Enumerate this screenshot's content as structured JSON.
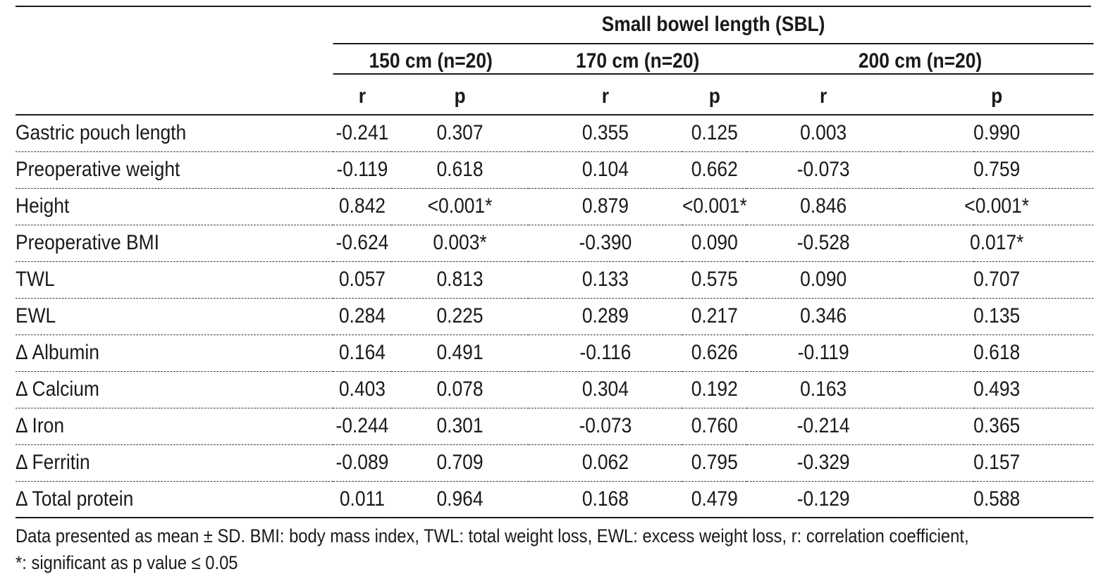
{
  "header": {
    "group_title": "Small bowel length (SBL)",
    "groups": [
      "150 cm (n=20)",
      "170 cm (n=20)",
      "200 cm (n=20)"
    ],
    "r_label": "r",
    "p_label": "p"
  },
  "rows": [
    {
      "label": "Gastric pouch length",
      "v": [
        "-0.241",
        "0.307",
        "0.355",
        "0.125",
        "0.003",
        "0.990"
      ]
    },
    {
      "label": "Preoperative weight",
      "v": [
        "-0.119",
        "0.618",
        "0.104",
        "0.662",
        "-0.073",
        "0.759"
      ]
    },
    {
      "label": "Height",
      "v": [
        "0.842",
        "<0.001*",
        "0.879",
        "<0.001*",
        "0.846",
        "<0.001*"
      ]
    },
    {
      "label": "Preoperative BMI",
      "v": [
        "-0.624",
        "0.003*",
        "-0.390",
        "0.090",
        "-0.528",
        "0.017*"
      ]
    },
    {
      "label": "TWL",
      "v": [
        "0.057",
        "0.813",
        "0.133",
        "0.575",
        "0.090",
        "0.707"
      ]
    },
    {
      "label": "EWL",
      "v": [
        "0.284",
        "0.225",
        "0.289",
        "0.217",
        "0.346",
        "0.135"
      ]
    },
    {
      "label": "Δ Albumin",
      "v": [
        "0.164",
        "0.491",
        "-0.116",
        "0.626",
        "-0.119",
        "0.618"
      ]
    },
    {
      "label": "Δ Calcium",
      "v": [
        "0.403",
        "0.078",
        "0.304",
        "0.192",
        "0.163",
        "0.493"
      ]
    },
    {
      "label": "Δ Iron",
      "v": [
        "-0.244",
        "0.301",
        "-0.073",
        "0.760",
        "-0.214",
        "0.365"
      ]
    },
    {
      "label": "Δ Ferritin",
      "v": [
        "-0.089",
        "0.709",
        "0.062",
        "0.795",
        "-0.329",
        "0.157"
      ]
    },
    {
      "label": "Δ Total protein",
      "v": [
        "0.011",
        "0.964",
        "0.168",
        "0.479",
        "-0.129",
        "0.588"
      ]
    }
  ],
  "footnote": {
    "line1": "Data presented as mean ± SD. BMI: body mass index, TWL: total weight loss, EWL: excess weight loss, r: correlation coefficient,",
    "line2": "*: significant as p value ≤ 0.05"
  }
}
